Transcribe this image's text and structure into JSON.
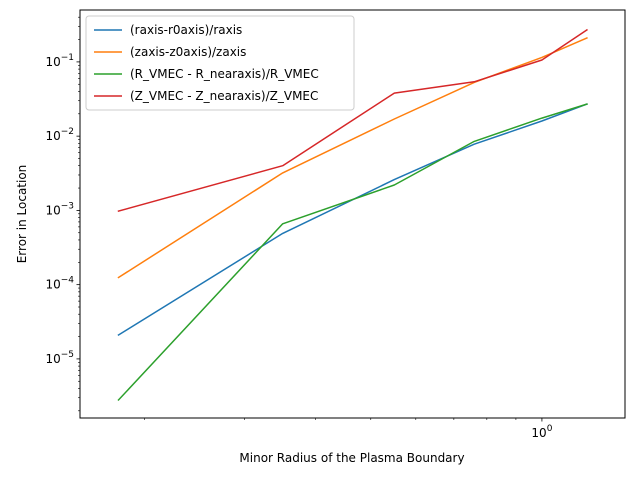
{
  "chart_data": {
    "type": "line",
    "title": "",
    "xlabel": "Minor Radius of the Plasma Boundary",
    "ylabel": "Error in Location",
    "x_scale": "log",
    "y_scale": "log",
    "xlim": [
      0.154,
      1.4
    ],
    "ylim": [
      1.6e-06,
      0.5
    ],
    "grid": false,
    "legend_position": "top-left",
    "x_major_ticks": [
      {
        "value": 1,
        "label": "10^0"
      }
    ],
    "x_minor_ticks": [
      0.2,
      0.3,
      0.4,
      0.5,
      0.6,
      0.7,
      0.8,
      0.9
    ],
    "y_major_ticks": [
      {
        "value": 1e-05,
        "label": "10^-5"
      },
      {
        "value": 0.0001,
        "label": "10^-4"
      },
      {
        "value": 0.001,
        "label": "10^-3"
      },
      {
        "value": 0.01,
        "label": "10^-2"
      },
      {
        "value": 0.1,
        "label": "10^-1"
      }
    ],
    "series": [
      {
        "name": "(raxis-r0axis)/raxis",
        "color": "#1f77b4",
        "x": [
          0.18,
          0.35,
          0.55,
          0.76,
          1.0,
          1.2
        ],
        "y": [
          2.1e-05,
          0.00049,
          0.0026,
          0.0078,
          0.016,
          0.027
        ]
      },
      {
        "name": "(zaxis-z0axis)/zaxis",
        "color": "#ff7f0e",
        "x": [
          0.18,
          0.35,
          0.55,
          0.76,
          1.0,
          1.2
        ],
        "y": [
          0.000125,
          0.0032,
          0.017,
          0.053,
          0.115,
          0.21
        ]
      },
      {
        "name": "(R_VMEC - R_nearaxis)/R_VMEC",
        "color": "#2ca02c",
        "x": [
          0.18,
          0.35,
          0.55,
          0.76,
          1.0,
          1.2
        ],
        "y": [
          2.8e-06,
          0.00066,
          0.0022,
          0.0085,
          0.0175,
          0.027
        ]
      },
      {
        "name": "(Z_VMEC - Z_nearaxis)/Z_VMEC",
        "color": "#d62728",
        "x": [
          0.18,
          0.35,
          0.55,
          0.76,
          1.0,
          1.2
        ],
        "y": [
          0.00098,
          0.004,
          0.038,
          0.054,
          0.106,
          0.27
        ]
      }
    ]
  }
}
